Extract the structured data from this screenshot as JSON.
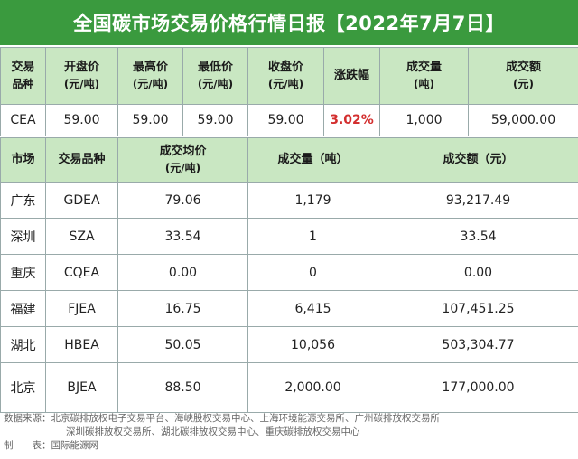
{
  "title": "全国碳市场交易价格行情日报【2022年7月7日】",
  "summary": {
    "headers": [
      {
        "main": "交易",
        "sub": "品种"
      },
      {
        "main": "开盘价",
        "sub": "(元/吨)"
      },
      {
        "main": "最高价",
        "sub": "(元/吨)"
      },
      {
        "main": "最低价",
        "sub": "(元/吨)"
      },
      {
        "main": "收盘价",
        "sub": "(元/吨)"
      },
      {
        "main": "涨跌幅",
        "sub": ""
      },
      {
        "main": "成交量",
        "sub": "(吨)"
      },
      {
        "main": "成交额",
        "sub": "(元)"
      }
    ],
    "row": [
      "CEA",
      "59.00",
      "59.00",
      "59.00",
      "59.00",
      "3.02%",
      "1,000",
      "59,000.00"
    ]
  },
  "regional": {
    "headers": {
      "market": "市场",
      "product": "交易品种",
      "avg_main": "成交均价",
      "avg_sub": "(元/吨)",
      "volume": "成交量（吨）",
      "amount": "成交额（元）"
    },
    "rows": [
      [
        "广东",
        "GDEA",
        "79.06",
        "1,179",
        "93,217.49"
      ],
      [
        "深圳",
        "SZA",
        "33.54",
        "1",
        "33.54"
      ],
      [
        "重庆",
        "CQEA",
        "0.00",
        "0",
        "0.00"
      ],
      [
        "福建",
        "FJEA",
        "16.75",
        "6,415",
        "107,451.25"
      ],
      [
        "湖北",
        "HBEA",
        "50.05",
        "10,056",
        "503,304.77"
      ],
      [
        "北京",
        "BJEA",
        "88.50",
        "2,000.00",
        "177,000.00"
      ]
    ]
  },
  "source": {
    "line1": "数据来源：北京碳排放权电子交易平台、海峡股权交易中心、上海环境能源交易所、广州碳排放权交易所",
    "line2": "深圳碳排放权交易所、湖北碳排放权交易中心、重庆碳排放权交易中心",
    "line3": "制　　表：国际能源网"
  }
}
